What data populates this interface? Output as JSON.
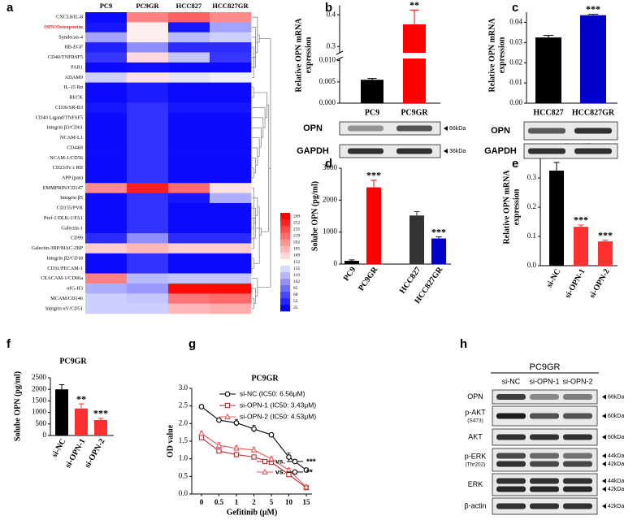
{
  "panel_labels": [
    "a",
    "b",
    "c",
    "d",
    "e",
    "f",
    "g",
    "h"
  ],
  "chart_data": [
    {
      "type": "heatmap",
      "columns": [
        "PC9",
        "PC9GR",
        "HCC827",
        "HCC827GR"
      ],
      "rows": [
        "CXCL8/IL-8",
        "OPN/Osteopontin",
        "Syndecan-4",
        "HB-EGF",
        "CD40/TNFRSF5",
        "PAR1",
        "ADAM9",
        "IL-15 Rα",
        "RECK",
        "CD36/SR-B3",
        "CD40 Ligand/TNFSF5",
        "Integrin β3/CD61",
        "NCAM-L1",
        "CD44H",
        "NCAM-1/CD56",
        "CD23/Fc ε RII",
        "APP (pan)",
        "EMMPRIN/CD147",
        "Integrin β5",
        "CD155/PVR",
        "Pref-1/DLK-1/FA1",
        "Galectin-1",
        "CD99",
        "Galectin-3BP/MAC-2BP",
        "Integrin β2/CD18",
        "CD31/PECAM-1",
        "CEACAM-1/CD66a",
        "αIG-H3",
        "MCAM/CD146",
        "Integrin αV/CD51"
      ],
      "values": [
        [
          40,
          210,
          225,
          205
        ],
        [
          45,
          160,
          45,
          110
        ],
        [
          110,
          160,
          120,
          130
        ],
        [
          50,
          100,
          55,
          55
        ],
        [
          60,
          170,
          125,
          60
        ],
        [
          40,
          42,
          40,
          40
        ],
        [
          130,
          165,
          140,
          145
        ],
        [
          40,
          48,
          40,
          40
        ],
        [
          40,
          48,
          40,
          40
        ],
        [
          45,
          58,
          45,
          45
        ],
        [
          40,
          58,
          40,
          40
        ],
        [
          40,
          58,
          40,
          40
        ],
        [
          40,
          58,
          40,
          40
        ],
        [
          40,
          58,
          40,
          40
        ],
        [
          40,
          58,
          40,
          40
        ],
        [
          40,
          58,
          40,
          40
        ],
        [
          40,
          58,
          40,
          40
        ],
        [
          205,
          255,
          220,
          165
        ],
        [
          40,
          58,
          45,
          115
        ],
        [
          40,
          58,
          40,
          40
        ],
        [
          40,
          58,
          40,
          40
        ],
        [
          40,
          58,
          40,
          40
        ],
        [
          55,
          100,
          55,
          55
        ],
        [
          175,
          185,
          175,
          175
        ],
        [
          40,
          58,
          40,
          40
        ],
        [
          40,
          58,
          40,
          40
        ],
        [
          210,
          120,
          125,
          125
        ],
        [
          115,
          105,
          265,
          265
        ],
        [
          130,
          125,
          215,
          220
        ],
        [
          130,
          130,
          185,
          190
        ]
      ],
      "clim": [
        35,
        269
      ],
      "colors": [
        "#0000ff",
        "#ffffff",
        "#ff0000"
      ],
      "colorbar_ticks": [
        35,
        52,
        68,
        85,
        102,
        119,
        135,
        152,
        169,
        185,
        202,
        219,
        235,
        252,
        269
      ],
      "highlight_rows": [
        1
      ],
      "highlight_color": "#e8262a"
    },
    {
      "type": "bar",
      "categories": [
        "PC9",
        "PC9GR"
      ],
      "values": [
        0.0055,
        0.37
      ],
      "errors": [
        0.0003,
        0.045
      ],
      "significance": [
        null,
        "**"
      ],
      "colors": [
        "#000000",
        "#ff0000"
      ],
      "ylabel": [
        "Relative OPN mRNA",
        "expression"
      ],
      "ylim": [
        0,
        0.43
      ],
      "ybreak": [
        0.0105,
        0.28
      ],
      "yticks": [
        {
          "value": 0,
          "label": "0.000"
        },
        {
          "value": 0.005,
          "label": "0.005"
        },
        {
          "value": 0.01,
          "label": "0.010"
        },
        0.3,
        0.4
      ]
    },
    {
      "type": "bar",
      "categories": [
        "HCC827",
        "HCC827GR"
      ],
      "values": [
        0.0325,
        0.0435
      ],
      "errors": [
        0.001,
        0.0005
      ],
      "significance": [
        null,
        "***"
      ],
      "colors": [
        "#000000",
        "#0000cc"
      ],
      "ylabel": [
        "Relative OPN mRNA",
        "expression"
      ],
      "ylim": [
        0,
        0.045
      ],
      "yticks": [
        {
          "value": 0,
          "label": "0.00"
        },
        {
          "value": 0.01,
          "label": "0.01"
        },
        {
          "value": 0.02,
          "label": "0.02"
        },
        {
          "value": 0.03,
          "label": "0.03"
        },
        {
          "value": 0.04,
          "label": "0.04"
        }
      ]
    },
    {
      "type": "bar",
      "categories": [
        "PC9",
        "PC9GR",
        "HCC827",
        "HCC827GR"
      ],
      "values": [
        100,
        2400,
        1520,
        800
      ],
      "errors": [
        30,
        220,
        120,
        50
      ],
      "significance": [
        null,
        "***",
        null,
        "***"
      ],
      "colors": [
        "#000000",
        "#ff0000",
        "#333333",
        "#0000cc"
      ],
      "ylabel": [
        "Solube OPN (pg/ml)"
      ],
      "ylim": [
        0,
        3000
      ],
      "yticks": [
        0,
        1000,
        2000,
        3000
      ]
    },
    {
      "type": "bar",
      "title": "PC9GR",
      "categories": [
        "si-NC",
        "si-OPN-1",
        "si-OPN-2"
      ],
      "values": [
        0.325,
        0.133,
        0.083
      ],
      "errors": [
        0.028,
        0.006,
        0.004
      ],
      "significance": [
        null,
        "***",
        "***"
      ],
      "colors": [
        "#000000",
        "#ff3030",
        "#ff3030"
      ],
      "ylabel": [
        "Relative OPN mRNA",
        "expression"
      ],
      "ylim": [
        0,
        0.4
      ],
      "yticks": [
        {
          "value": 0,
          "label": "0.0"
        },
        {
          "value": 0.1,
          "label": "0.1"
        },
        {
          "value": 0.2,
          "label": "0.2"
        },
        {
          "value": 0.3,
          "label": "0.3"
        },
        {
          "value": 0.4,
          "label": "0.4"
        }
      ]
    },
    {
      "type": "bar",
      "title": "PC9GR",
      "categories": [
        "si-NC",
        "si-OPN-1",
        "si-OPN-2"
      ],
      "values": [
        2000,
        1170,
        670
      ],
      "errors": [
        200,
        200,
        70
      ],
      "significance": [
        null,
        "**",
        "***"
      ],
      "colors": [
        "#000000",
        "#ff3030",
        "#ff3030"
      ],
      "ylabel": [
        "Solube OPN (pg/ml)"
      ],
      "ylim": [
        0,
        2500
      ],
      "yticks": [
        0,
        500,
        1000,
        1500,
        2000,
        2500
      ]
    },
    {
      "type": "line",
      "title": "PC9GR",
      "categories": [
        "0",
        "0.5",
        "1",
        "2",
        "5",
        "10",
        "15"
      ],
      "xlabel": "Gefitinib (μM)",
      "ylabel": "OD value",
      "ylim": [
        0,
        3
      ],
      "yticks": [
        {
          "value": 0,
          "label": "0.0"
        },
        {
          "value": 0.5,
          "label": "0.5"
        },
        {
          "value": 1,
          "label": "1.0"
        },
        {
          "value": 1.5,
          "label": "1.5"
        },
        {
          "value": 2,
          "label": "2.0"
        },
        {
          "value": 2.5,
          "label": "2.5"
        },
        {
          "value": 3,
          "label": "3.0"
        }
      ],
      "series": [
        {
          "name": "si-NC (IC50: 6.56μM)",
          "color": "#000000",
          "marker": "circle",
          "values": [
            2.48,
            2.1,
            2.02,
            1.85,
            1.68,
            1.05,
            0.68
          ],
          "errors": [
            0.05,
            0.05,
            0.1,
            0.1,
            0.06,
            0.12,
            0.03
          ]
        },
        {
          "name": "si-OPN-1 (IC50: 3.43μM)",
          "color": "#c0282d",
          "marker": "square",
          "values": [
            1.6,
            1.22,
            1.12,
            1.05,
            0.9,
            0.55,
            0.18
          ],
          "errors": [
            0.05,
            0.06,
            0.05,
            0.05,
            0.05,
            0.05,
            0.03
          ]
        },
        {
          "name": "si-OPN-2 (IC50: 4.53μM)",
          "color": "#e8585a",
          "marker": "triangle",
          "values": [
            1.72,
            1.38,
            1.3,
            1.25,
            1.0,
            0.68,
            0.2
          ],
          "errors": [
            0.06,
            0.08,
            0.08,
            0.08,
            0.06,
            0.05,
            0.03
          ]
        }
      ],
      "comparisons": [
        {
          "label": "vs.",
          "significance": "***"
        },
        {
          "label": "vs.",
          "significance": "**"
        }
      ]
    }
  ],
  "blots": [
    {
      "rows": [
        {
          "label": "OPN",
          "size": "66kDa"
        },
        {
          "label": "GAPDH",
          "size": "36kDa"
        }
      ]
    },
    {
      "rows": [
        {
          "label": "OPN"
        },
        {
          "label": "GAPDH"
        }
      ]
    },
    {
      "header": "PC9GR",
      "lanes": [
        "si-NC",
        "si-OPN-1",
        "si-OPN-2"
      ],
      "rows": [
        {
          "label": "OPN",
          "size": "66kDa"
        },
        {
          "label": "p-AKT",
          "sublabel": "(S473)",
          "size": "60kDa"
        },
        {
          "label": "AKT",
          "size": "60kDa"
        },
        {
          "label": "p-ERK",
          "sublabel": "(Thr202)",
          "sizes": [
            "44kDa",
            "42kDa"
          ]
        },
        {
          "label": "ERK",
          "sizes": [
            "44kDa",
            "42kDa"
          ]
        },
        {
          "label": "β-actin",
          "size": "42kDa"
        }
      ]
    }
  ]
}
